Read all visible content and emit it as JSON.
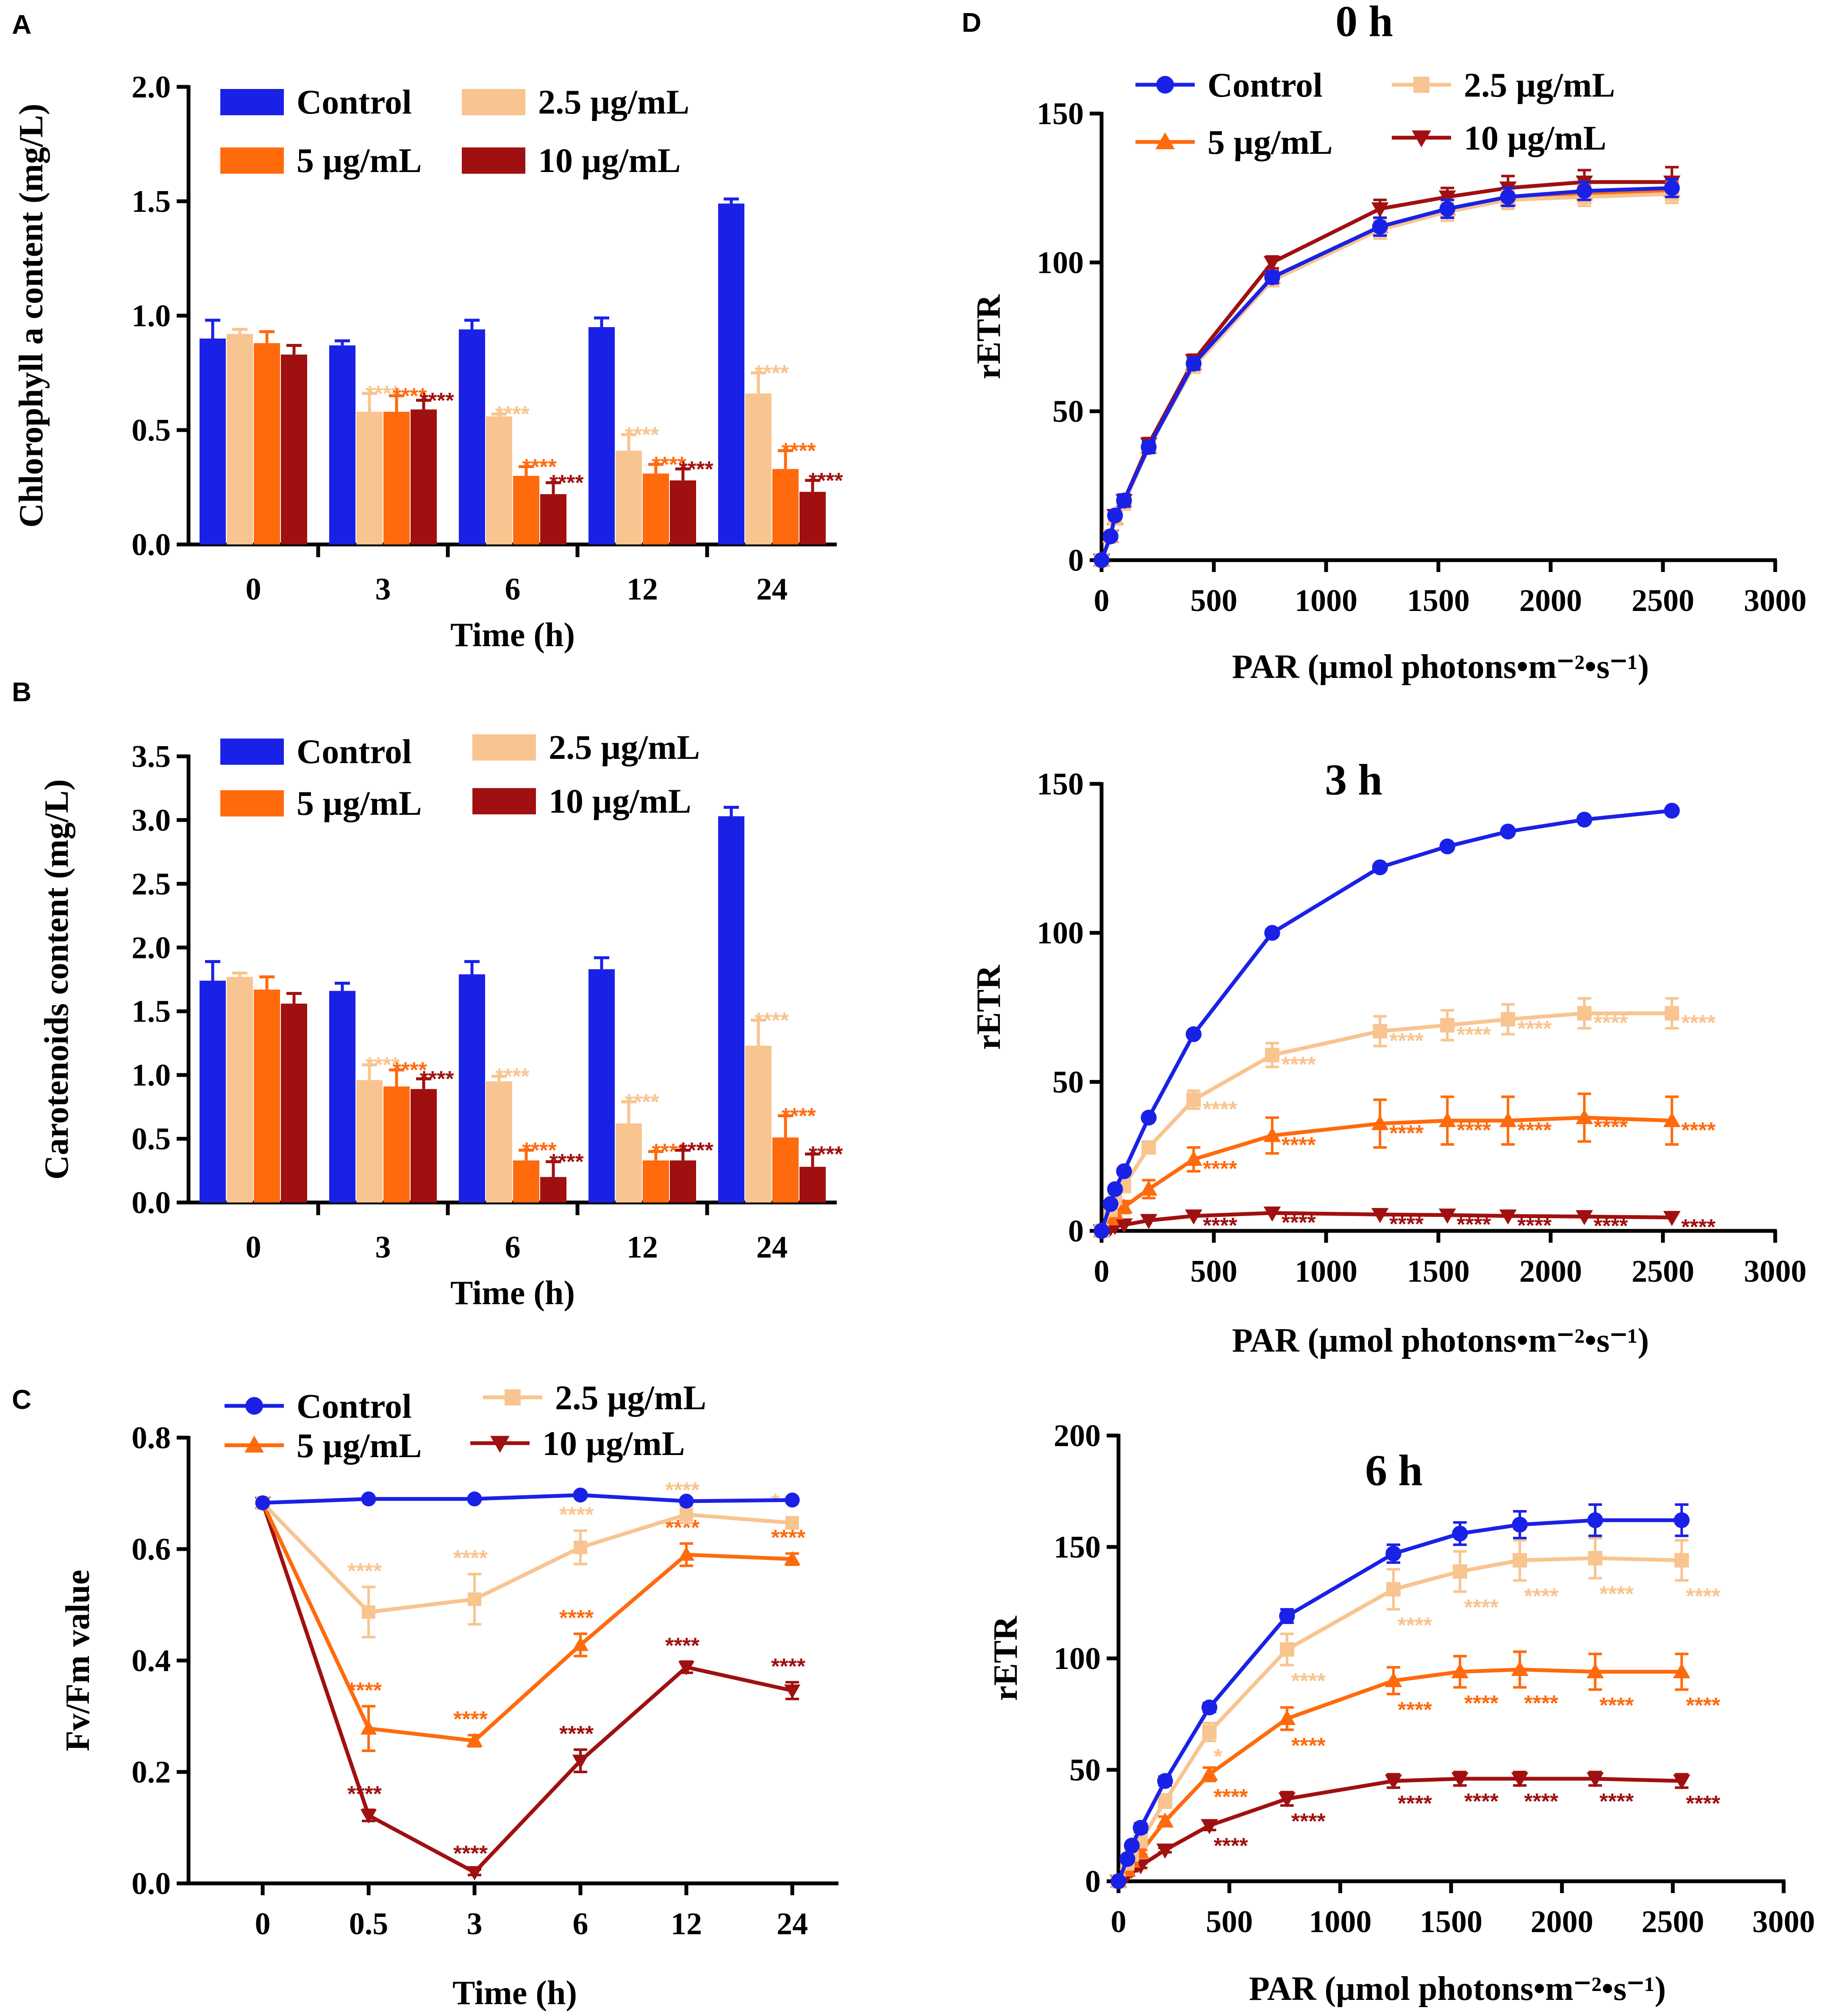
{
  "colors": {
    "Control": "#1a21e6",
    "2.5 µg/mL": "#f8c48f",
    "5 µg/mL": "#ff6a0d",
    "10 µg/mL": "#a01010"
  },
  "chart_data": [
    {
      "id": "A",
      "panel_label": "A",
      "type": "bar",
      "xlabel": "Time (h)",
      "ylabel": "Chlorophyll a content (mg/L)",
      "ylim": [
        0,
        2.0
      ],
      "yticks": [
        "0.0",
        "0.5",
        "1.0",
        "1.5",
        "2.0"
      ],
      "categories": [
        "0",
        "3",
        "6",
        "12",
        "24"
      ],
      "series": [
        {
          "name": "Control",
          "values": [
            0.9,
            0.87,
            0.94,
            0.95,
            1.49
          ],
          "errors": [
            0.08,
            0.02,
            0.04,
            0.04,
            0.02
          ],
          "stars": [
            "",
            "",
            "",
            "",
            ""
          ]
        },
        {
          "name": "2.5 µg/mL",
          "values": [
            0.92,
            0.58,
            0.56,
            0.41,
            0.66
          ],
          "errors": [
            0.02,
            0.08,
            0.01,
            0.07,
            0.09
          ],
          "stars": [
            "",
            "****",
            "****",
            "****",
            "****"
          ]
        },
        {
          "name": "5 µg/mL",
          "values": [
            0.88,
            0.58,
            0.3,
            0.31,
            0.33
          ],
          "errors": [
            0.05,
            0.07,
            0.04,
            0.04,
            0.08
          ],
          "stars": [
            "",
            "****",
            "****",
            "****",
            "****"
          ]
        },
        {
          "name": "10 µg/mL",
          "values": [
            0.83,
            0.59,
            0.22,
            0.28,
            0.23
          ],
          "errors": [
            0.04,
            0.04,
            0.05,
            0.05,
            0.05
          ],
          "stars": [
            "",
            "****",
            "****",
            "****",
            "****"
          ]
        }
      ],
      "legend": "top-left"
    },
    {
      "id": "B",
      "panel_label": "B",
      "type": "bar",
      "xlabel": "Time (h)",
      "ylabel": "Carotenoids content (mg/L)",
      "ylim": [
        0,
        3.5
      ],
      "yticks": [
        "0.0",
        "0.5",
        "1.0",
        "1.5",
        "2.0",
        "2.5",
        "3.0",
        "3.5"
      ],
      "categories": [
        "0",
        "3",
        "6",
        "12",
        "24"
      ],
      "series": [
        {
          "name": "Control",
          "values": [
            1.74,
            1.66,
            1.79,
            1.83,
            3.03
          ],
          "errors": [
            0.15,
            0.06,
            0.1,
            0.09,
            0.07
          ],
          "stars": [
            "",
            "",
            "",
            "",
            ""
          ]
        },
        {
          "name": "2.5 µg/mL",
          "values": [
            1.77,
            0.96,
            0.95,
            0.62,
            1.23
          ],
          "errors": [
            0.03,
            0.12,
            0.04,
            0.17,
            0.2
          ],
          "stars": [
            "",
            "****",
            "****",
            "****",
            "****"
          ]
        },
        {
          "name": "5 µg/mL",
          "values": [
            1.67,
            0.91,
            0.33,
            0.33,
            0.51
          ],
          "errors": [
            0.1,
            0.13,
            0.08,
            0.07,
            0.17
          ],
          "stars": [
            "",
            "****",
            "****",
            "****",
            "****"
          ]
        },
        {
          "name": "10 µg/mL",
          "values": [
            1.56,
            0.89,
            0.2,
            0.33,
            0.28
          ],
          "errors": [
            0.08,
            0.08,
            0.12,
            0.08,
            0.1
          ],
          "stars": [
            "",
            "****",
            "****",
            "****",
            "****"
          ]
        }
      ],
      "legend": "top-left"
    },
    {
      "id": "C",
      "panel_label": "C",
      "type": "line",
      "xlabel": "Time (h)",
      "ylabel": "Fv/Fm value",
      "ylim": [
        0,
        0.8
      ],
      "yticks": [
        "0.0",
        "0.2",
        "0.4",
        "0.6",
        "0.8"
      ],
      "categories": [
        "0",
        "0.5",
        "3",
        "6",
        "12",
        "24"
      ],
      "series": [
        {
          "name": "Control",
          "marker": "circle",
          "values": [
            0.683,
            0.69,
            0.69,
            0.697,
            0.686,
            0.688
          ],
          "errors": [
            0,
            0,
            0,
            0,
            0,
            0
          ],
          "stars": [
            "",
            "",
            "",
            "",
            "",
            ""
          ]
        },
        {
          "name": "2.5 µg/mL",
          "marker": "square",
          "values": [
            0.683,
            0.487,
            0.51,
            0.603,
            0.662,
            0.647
          ],
          "errors": [
            0,
            0.045,
            0.045,
            0.03,
            0.015,
            0.01
          ],
          "stars": [
            "",
            "****",
            "****",
            "****",
            "****",
            "*"
          ]
        },
        {
          "name": "5 µg/mL",
          "marker": "triangle-up",
          "values": [
            0.683,
            0.278,
            0.256,
            0.428,
            0.59,
            0.582
          ],
          "errors": [
            0,
            0.04,
            0.01,
            0.02,
            0.02,
            0.01
          ],
          "stars": [
            "",
            "****",
            "****",
            "****",
            "****",
            "****"
          ]
        },
        {
          "name": "10 µg/mL",
          "marker": "triangle-down",
          "values": [
            0.683,
            0.122,
            0.02,
            0.22,
            0.388,
            0.346
          ],
          "errors": [
            0,
            0.01,
            0.005,
            0.02,
            0.01,
            0.015
          ],
          "stars": [
            "",
            "****",
            "****",
            "****",
            "****",
            "****"
          ]
        }
      ],
      "legend": "top"
    },
    {
      "id": "D0",
      "panel_label": "D",
      "type": "line",
      "title": "0 h",
      "xlabel": "PAR (µmol photons•m⁻²•s⁻¹)",
      "ylabel": "rETR",
      "xlim": [
        0,
        3000
      ],
      "ylim": [
        0,
        150
      ],
      "xticks": [
        "0",
        "500",
        "1000",
        "1500",
        "2000",
        "2500",
        "3000"
      ],
      "yticks": [
        "0",
        "50",
        "100",
        "150"
      ],
      "x": [
        0,
        40,
        60,
        100,
        210,
        410,
        760,
        1240,
        1540,
        1810,
        2150,
        2540
      ],
      "series": [
        {
          "name": "Control",
          "marker": "circle",
          "values": [
            0,
            8,
            15,
            20,
            38,
            66,
            95,
            112,
            118,
            122,
            124,
            125
          ],
          "errors": [
            0,
            1,
            1,
            2,
            2,
            2,
            2,
            3,
            3,
            3,
            3,
            3
          ],
          "stars": []
        },
        {
          "name": "2.5 µg/mL",
          "marker": "square",
          "values": [
            0,
            8,
            14,
            19,
            38,
            65,
            94,
            111,
            117,
            121,
            122,
            123
          ],
          "errors": [
            0,
            1,
            1,
            2,
            2,
            2,
            2,
            3,
            3,
            3,
            3,
            3
          ],
          "stars": []
        },
        {
          "name": "5 µg/mL",
          "marker": "triangle-up",
          "values": [
            0,
            8,
            14,
            20,
            38,
            66,
            95,
            112,
            118,
            121,
            123,
            124
          ],
          "errors": [
            0,
            1,
            1,
            2,
            2,
            2,
            2,
            3,
            3,
            3,
            3,
            3
          ],
          "stars": []
        },
        {
          "name": "10 µg/mL",
          "marker": "triangle-down",
          "values": [
            0,
            8,
            15,
            20,
            39,
            67,
            100,
            118,
            122,
            125,
            127,
            127
          ],
          "errors": [
            0,
            1,
            1,
            2,
            2,
            2,
            2,
            3,
            3,
            4,
            4,
            5
          ],
          "stars": []
        }
      ],
      "legend": "top"
    },
    {
      "id": "D3",
      "type": "line",
      "title": "3 h",
      "xlabel": "PAR (µmol photons•m⁻²•s⁻¹)",
      "ylabel": "rETR",
      "xlim": [
        0,
        3000
      ],
      "ylim": [
        0,
        150
      ],
      "xticks": [
        "0",
        "500",
        "1000",
        "1500",
        "2000",
        "2500",
        "3000"
      ],
      "yticks": [
        "0",
        "50",
        "100",
        "150"
      ],
      "x": [
        0,
        40,
        60,
        100,
        210,
        410,
        760,
        1240,
        1540,
        1810,
        2150,
        2540
      ],
      "series": [
        {
          "name": "Control",
          "marker": "circle",
          "values": [
            0,
            9,
            14,
            20,
            38,
            66,
            100,
            122,
            129,
            134,
            138,
            141
          ],
          "errors": [
            0,
            0,
            0,
            0,
            0,
            0,
            0,
            0,
            0,
            0,
            0,
            0
          ],
          "stars": [
            "",
            "",
            "",
            "",
            "",
            "",
            "",
            "",
            "",
            "",
            "",
            ""
          ]
        },
        {
          "name": "2.5 µg/mL",
          "marker": "square",
          "values": [
            0,
            7,
            11,
            15,
            28,
            44,
            59,
            67,
            69,
            71,
            73,
            73
          ],
          "errors": [
            0,
            1,
            1,
            1,
            2,
            3,
            4,
            5,
            5,
            5,
            5,
            5
          ],
          "stars": [
            "",
            "",
            "",
            "",
            "",
            "****",
            "****",
            "****",
            "****",
            "****",
            "****",
            "****"
          ]
        },
        {
          "name": "5 µg/mL",
          "marker": "triangle-up",
          "values": [
            0,
            4,
            6,
            8,
            14,
            24,
            32,
            36,
            37,
            37,
            38,
            37
          ],
          "errors": [
            0,
            1,
            1,
            2,
            3,
            4,
            6,
            8,
            8,
            8,
            8,
            8
          ],
          "stars": [
            "",
            "",
            "",
            "",
            "",
            "****",
            "****",
            "****",
            "****",
            "****",
            "****",
            "****"
          ]
        },
        {
          "name": "10 µg/mL",
          "marker": "triangle-down",
          "values": [
            0,
            1,
            1.5,
            2,
            3.5,
            5,
            6,
            5.5,
            5.3,
            5,
            4.8,
            4.5
          ],
          "errors": [
            0,
            0,
            0,
            0,
            0,
            0,
            0,
            0,
            0,
            0,
            0,
            0
          ],
          "stars": [
            "",
            "",
            "",
            "",
            "",
            "****",
            "****",
            "****",
            "****",
            "****",
            "****",
            "****"
          ]
        }
      ],
      "legend": "none"
    },
    {
      "id": "D6",
      "type": "line",
      "title": "6 h",
      "xlabel": "PAR (µmol photons•m⁻²•s⁻¹)",
      "ylabel": "rETR",
      "xlim": [
        0,
        3000
      ],
      "ylim": [
        0,
        200
      ],
      "xticks": [
        "0",
        "500",
        "1000",
        "1500",
        "2000",
        "2500",
        "3000"
      ],
      "yticks": [
        "0",
        "50",
        "100",
        "150",
        "200"
      ],
      "x": [
        0,
        40,
        60,
        100,
        210,
        410,
        760,
        1240,
        1540,
        1810,
        2150,
        2540
      ],
      "series": [
        {
          "name": "Control",
          "marker": "circle",
          "values": [
            0,
            10,
            16,
            24,
            45,
            78,
            119,
            147,
            156,
            160,
            162,
            162
          ],
          "errors": [
            0,
            1,
            1,
            2,
            2,
            2,
            3,
            4,
            5,
            6,
            7,
            7
          ],
          "stars": [
            "",
            "",
            "",
            "",
            "",
            "",
            "",
            "",
            "",
            "",
            "",
            ""
          ]
        },
        {
          "name": "2.5 µg/mL",
          "marker": "square",
          "values": [
            0,
            8,
            12,
            18,
            36,
            67,
            104,
            131,
            139,
            144,
            145,
            144
          ],
          "errors": [
            0,
            1,
            1,
            2,
            3,
            4,
            7,
            9,
            9,
            9,
            9,
            9
          ],
          "stars": [
            "",
            "",
            "",
            "",
            "",
            "*",
            "****",
            "****",
            "****",
            "****",
            "****",
            "****"
          ]
        },
        {
          "name": "5 µg/mL",
          "marker": "triangle-up",
          "values": [
            0,
            5,
            9,
            13,
            27,
            48,
            73,
            90,
            94,
            95,
            94,
            94
          ],
          "errors": [
            0,
            1,
            1,
            1,
            2,
            3,
            5,
            6,
            7,
            8,
            8,
            8
          ],
          "stars": [
            "",
            "",
            "",
            "",
            "",
            "****",
            "****",
            "****",
            "****",
            "****",
            "****",
            "****"
          ]
        },
        {
          "name": "10 µg/mL",
          "marker": "triangle-down",
          "values": [
            0,
            3,
            5,
            7,
            14,
            25,
            37,
            45,
            46,
            46,
            46,
            45
          ],
          "errors": [
            0,
            0.5,
            0.5,
            1,
            1,
            2,
            3,
            3,
            3,
            3,
            3,
            3
          ],
          "stars": [
            "",
            "",
            "",
            "",
            "",
            "****",
            "****",
            "****",
            "****",
            "****",
            "****",
            "****"
          ]
        }
      ],
      "legend": "none"
    }
  ]
}
